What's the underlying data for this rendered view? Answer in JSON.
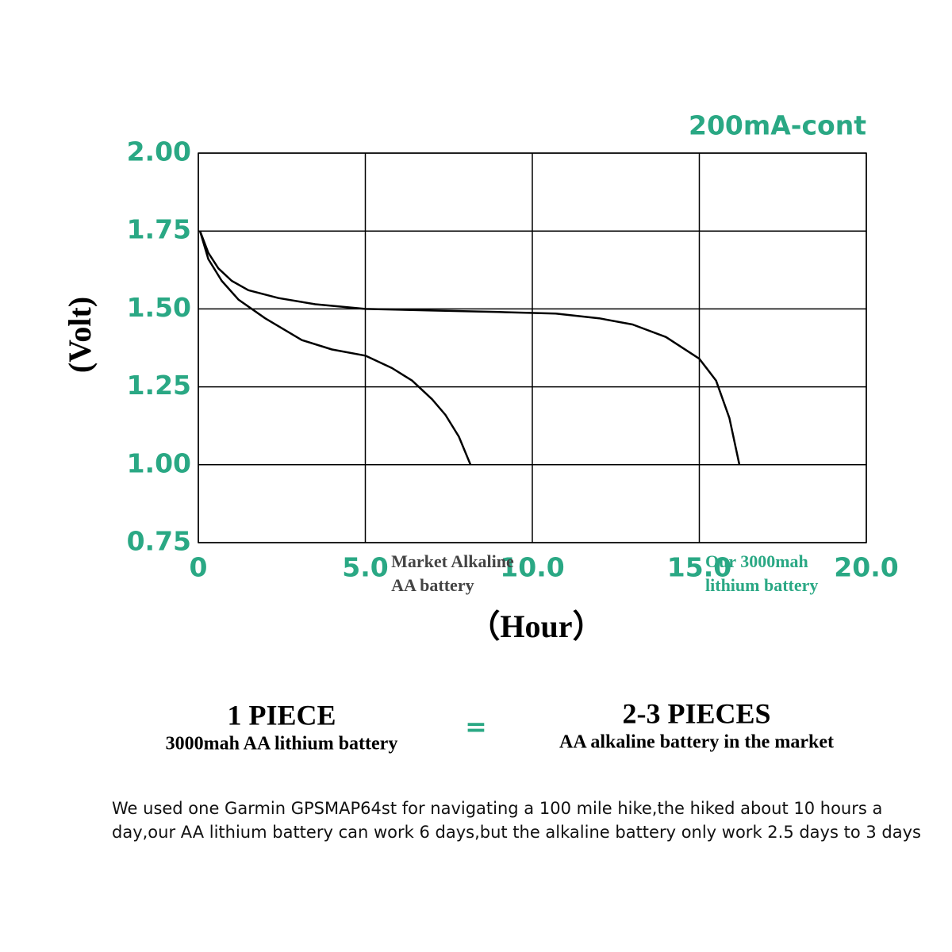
{
  "chart_data": {
    "type": "line",
    "title": "200mA-cont",
    "y_label": "(Volt)",
    "x_label": "（Hour）",
    "xlim": [
      0,
      20
    ],
    "xticks": [
      0,
      {
        "value": 5,
        "label": "5.0"
      },
      {
        "value": 10,
        "label": "10.0"
      },
      {
        "value": 15,
        "label": "15.0"
      },
      {
        "value": 20,
        "label": "20.0"
      }
    ],
    "ylim": [
      0.75,
      2
    ],
    "yticks": [
      {
        "value": 0.75,
        "label": "0.75"
      },
      {
        "value": 1,
        "label": "1.00"
      },
      {
        "value": 1.25,
        "label": "1.25"
      },
      {
        "value": 1.5,
        "label": "1.50"
      },
      {
        "value": 1.75,
        "label": "1.75"
      },
      {
        "value": 2,
        "label": "2.00"
      }
    ],
    "grid": true,
    "axis_color": "#2aa884",
    "series": [
      {
        "label": [
          "Market Alkaline",
          "AA battery"
        ],
        "label_color": "#444444",
        "color": "#000000",
        "x": [
          0.05,
          0.3,
          0.7,
          1.2,
          2,
          3.1,
          4,
          5,
          5.8,
          6.4,
          7,
          7.4,
          7.8,
          8.15
        ],
        "values": [
          1.75,
          1.66,
          1.59,
          1.53,
          1.47,
          1.4,
          1.37,
          1.35,
          1.31,
          1.27,
          1.21,
          1.16,
          1.09,
          1.0
        ]
      },
      {
        "label": [
          "Our 3000mah",
          "lithium battery"
        ],
        "label_color": "#2aa884",
        "color": "#000000",
        "x": [
          0.05,
          0.3,
          0.6,
          1,
          1.5,
          2.4,
          3.5,
          5,
          7,
          9,
          10.7,
          12,
          13,
          14,
          15,
          15.5,
          15.9,
          16.2
        ],
        "values": [
          1.75,
          1.68,
          1.63,
          1.59,
          1.56,
          1.535,
          1.515,
          1.5,
          1.495,
          1.49,
          1.485,
          1.47,
          1.45,
          1.41,
          1.34,
          1.27,
          1.15,
          1.0
        ]
      }
    ]
  },
  "comparison": {
    "left_title": "1 PIECE",
    "left_sub": "3000mah AA lithium battery",
    "equals": "=",
    "right_title": "2-3 PIECES",
    "right_sub": "AA alkaline battery in the market"
  },
  "note": [
    "We used one Garmin GPSMAP64st for navigating a 100 mile hike,the hiked about 10 hours a",
    "day,our AA lithium battery can work 6 days,but the alkaline battery only work 2.5 days to 3 days"
  ]
}
